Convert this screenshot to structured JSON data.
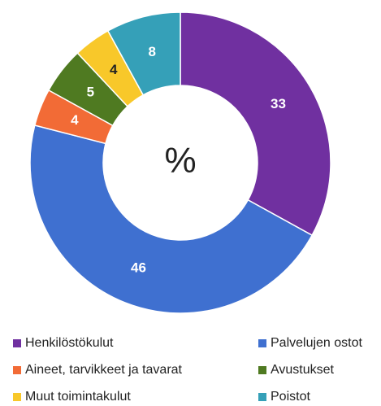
{
  "chart_data": {
    "type": "donut",
    "center_label": "%",
    "categories": [
      "Henkilöstökulut",
      "Palvelujen ostot",
      "Aineet, tarvikkeet ja tavarat",
      "Avustukset",
      "Muut toimintakulut",
      "Poistot"
    ],
    "values": [
      33,
      46,
      4,
      5,
      4,
      8
    ],
    "colors": [
      "#7030a0",
      "#3f70d0",
      "#f26b36",
      "#4f7a21",
      "#f8c82a",
      "#35a0b8"
    ],
    "legend": "bottom"
  }
}
